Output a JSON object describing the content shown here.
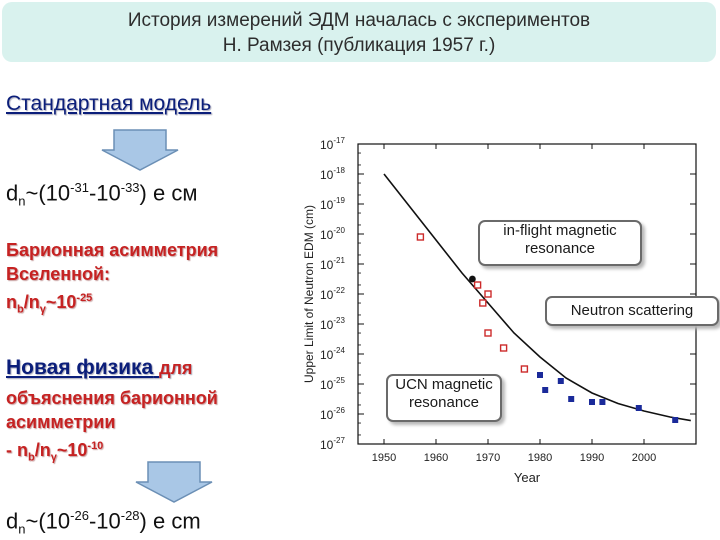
{
  "header": {
    "line1": "История измерений ЭДМ началась с экспериментов",
    "line2": "Н. Рамзея (публикация 1957 г.)"
  },
  "left": {
    "standard_model": "Стандартная модель",
    "dn_sm": {
      "d": "d",
      "n": "n",
      "a": "~(10",
      "e1": "-31",
      "b": "-10",
      "e2": "-33",
      "c": ") e см"
    },
    "baryon_line1": "Барионная асимметрия",
    "baryon_line2": "Вселенной:",
    "ratio1": {
      "n": "n",
      "b": "b",
      "slash": "/n",
      "g": "γ",
      "tilde": "~10",
      "exp": "-25"
    },
    "new_physics": "Новая физика",
    "for_word": "для",
    "expl_line1": "объяснения барионной",
    "expl_line2": "асимметрии",
    "ratio2": {
      "dash": "- n",
      "b": "b",
      "slash": "/n",
      "g": "γ",
      "tilde": "~10",
      "exp": "-10"
    },
    "dn_np": {
      "d": "d",
      "n": "n",
      "a": "~(10",
      "e1": "-26",
      "b": "-10",
      "e2": "-28",
      "c": ") e cm"
    }
  },
  "chart_data": {
    "type": "scatter",
    "xlabel": "Year",
    "ylabel": "Upper Limit of Neutron EDM (cm)",
    "log_y": true,
    "xlim": [
      1945,
      2010
    ],
    "ylim": [
      -27,
      -17
    ],
    "x_ticks": [
      "1950",
      "1960",
      "1970",
      "1980",
      "1990",
      "2000"
    ],
    "y_ticks": [
      {
        "base": "10",
        "exp": "-17"
      },
      {
        "base": "10",
        "exp": "-18"
      },
      {
        "base": "10",
        "exp": "-19"
      },
      {
        "base": "10",
        "exp": "-20"
      },
      {
        "base": "10",
        "exp": "-21"
      },
      {
        "base": "10",
        "exp": "-22"
      },
      {
        "base": "10",
        "exp": "-23"
      },
      {
        "base": "10",
        "exp": "-24"
      },
      {
        "base": "10",
        "exp": "-25"
      },
      {
        "base": "10",
        "exp": "-26"
      },
      {
        "base": "10",
        "exp": "-27"
      }
    ],
    "series": [
      {
        "name": "Neutron scattering",
        "marker": "open-square",
        "color": "#cc2a2a",
        "points": [
          [
            1957,
            -20.1
          ],
          [
            1968,
            -21.7
          ],
          [
            1969,
            -22.3
          ],
          [
            1970,
            -22.0
          ],
          [
            1970,
            -23.3
          ],
          [
            1973,
            -23.8
          ],
          [
            1977,
            -24.5
          ]
        ]
      },
      {
        "name": "in-flight magnetic resonance",
        "marker": "filled-circle",
        "color": "#111111",
        "points": [
          [
            1967,
            -21.5
          ]
        ]
      },
      {
        "name": "UCN magnetic resonance",
        "marker": "filled-square",
        "color": "#1a2a9a",
        "points": [
          [
            1980,
            -24.7
          ],
          [
            1981,
            -25.2
          ],
          [
            1984,
            -24.9
          ],
          [
            1986,
            -25.5
          ],
          [
            1990,
            -25.6
          ],
          [
            1992,
            -25.6
          ],
          [
            1999,
            -25.8
          ],
          [
            2006,
            -26.2
          ]
        ]
      }
    ],
    "trend": [
      [
        1950,
        -18.0
      ],
      [
        1960,
        -20.2
      ],
      [
        1965,
        -21.3
      ],
      [
        1970,
        -22.3
      ],
      [
        1975,
        -23.3
      ],
      [
        1980,
        -24.1
      ],
      [
        1985,
        -24.8
      ],
      [
        1990,
        -25.3
      ],
      [
        1995,
        -25.65
      ],
      [
        2000,
        -25.9
      ],
      [
        2005,
        -26.1
      ],
      [
        2009,
        -26.22
      ]
    ]
  },
  "callouts": {
    "inflight_line1": "in-flight magnetic",
    "inflight_line2": "resonance",
    "scattering": "Neutron scattering",
    "ucn_line1": "UCN magnetic",
    "ucn_line2": "resonance"
  },
  "colors": {
    "title_bg": "#d9f2ee",
    "heading": "#0b1e7a",
    "accent_red": "#c62222",
    "arrow_fill": "#a9c7e6"
  }
}
